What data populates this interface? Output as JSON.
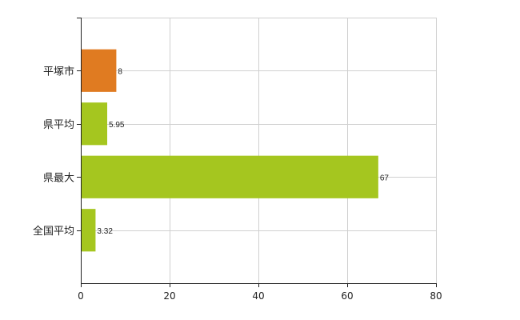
{
  "chart_data": {
    "type": "bar",
    "orientation": "horizontal",
    "categories": [
      "平塚市",
      "県平均",
      "県最大",
      "全国平均"
    ],
    "values": [
      8,
      5.95,
      67,
      3.32
    ],
    "value_labels": [
      "8",
      "5.95",
      "67",
      "3.32"
    ],
    "bar_colors": [
      "#e07b21",
      "#a5c61f",
      "#a5c61f",
      "#a5c61f"
    ],
    "xlim": [
      0,
      80
    ],
    "xticks": [
      0,
      20,
      40,
      60,
      80
    ],
    "xtick_labels": [
      "0",
      "20",
      "40",
      "60",
      "80"
    ],
    "grid": true,
    "gridline_color": "#d0d0d0",
    "legend": "none"
  }
}
